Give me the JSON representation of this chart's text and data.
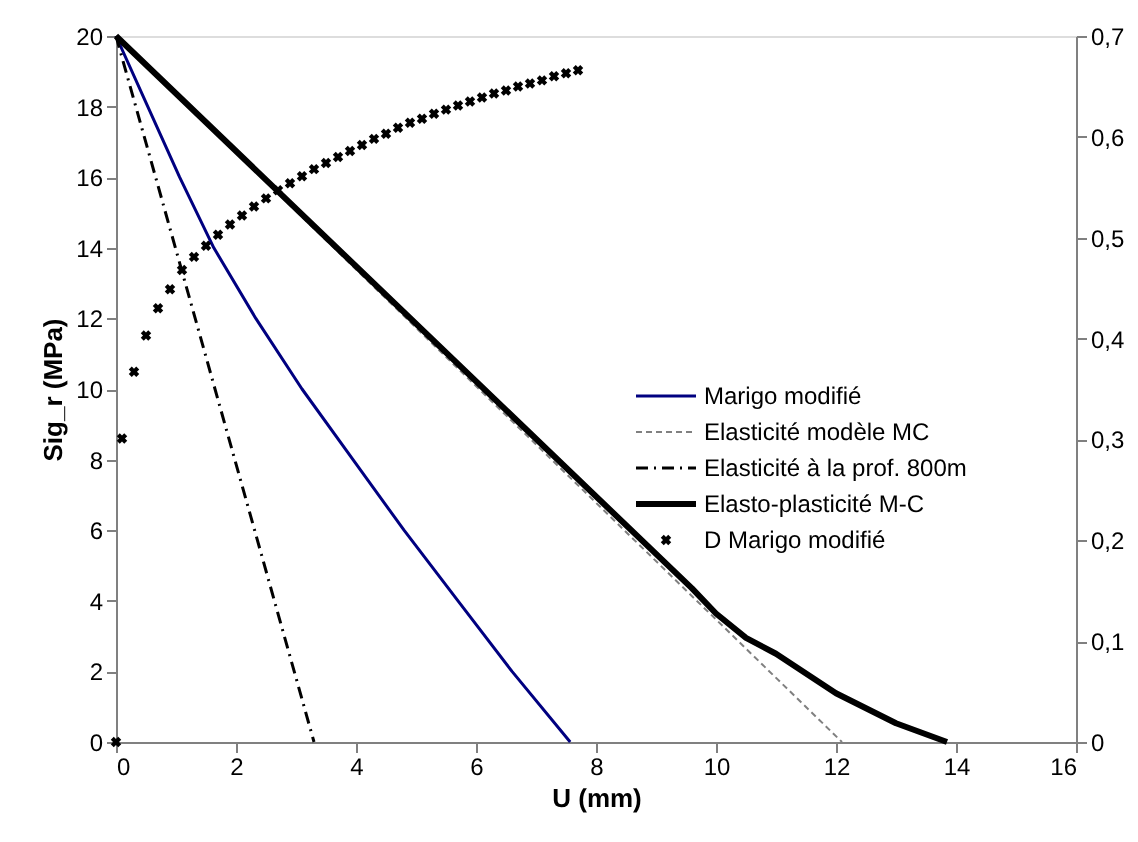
{
  "chart_data": {
    "type": "line",
    "xlabel": "U (mm)",
    "ylabel": "Sig_r (MPa)",
    "xlim": [
      0,
      16
    ],
    "xticks": [
      0,
      2,
      4,
      6,
      8,
      10,
      12,
      14,
      16
    ],
    "ylim": [
      0,
      20
    ],
    "yticks": [
      0,
      2,
      4,
      6,
      8,
      10,
      12,
      14,
      16,
      18,
      20
    ],
    "y2lim": [
      0,
      0.7
    ],
    "y2ticks": [
      {
        "value": 0,
        "label": "0"
      },
      {
        "value": 0.1,
        "label": "0,1"
      },
      {
        "value": 0.2,
        "label": "0,2"
      },
      {
        "value": 0.3,
        "label": "0,3"
      },
      {
        "value": 0.4,
        "label": "0,4"
      },
      {
        "value": 0.5,
        "label": "0,5"
      },
      {
        "value": 0.6,
        "label": "0,6"
      },
      {
        "value": 0.7,
        "label": "0,7"
      }
    ],
    "grid": false,
    "legend": "right",
    "series": [
      {
        "name": "Marigo modifié",
        "color": "#000080",
        "line_style": "solid",
        "x": [
          0,
          0.53,
          1.06,
          1.63,
          2.33,
          3.1,
          3.95,
          4.8,
          5.7,
          6.6,
          7.57
        ],
        "values": [
          20,
          18,
          16,
          14,
          12,
          10,
          8,
          6,
          4,
          2,
          0
        ]
      },
      {
        "name": "Elasticité modèle MC",
        "color": "#808080",
        "line_style": "dashed",
        "x": [
          0,
          12.1
        ],
        "values": [
          20,
          0
        ]
      },
      {
        "name": "Elasticité à la prof. 800m",
        "color": "#000000",
        "line_style": "dashdot",
        "x": [
          0,
          3.3
        ],
        "values": [
          20,
          0
        ]
      },
      {
        "name": "Elasto-plasticité M-C",
        "color": "#000000",
        "line_style": "solid",
        "x": [
          0,
          9.6,
          10,
          10.5,
          11,
          12,
          13,
          13.85
        ],
        "values": [
          20,
          4.35,
          3.64,
          2.95,
          2.5,
          1.38,
          0.53,
          0
        ]
      },
      {
        "name": "D Marigo modifié",
        "type": "scatter",
        "axis": "y2",
        "marker": "cross",
        "color": "#000000",
        "x": [
          0,
          0.1,
          0.3,
          0.5,
          0.7,
          0.9,
          1.1,
          1.3,
          1.5,
          1.7,
          1.9,
          2.1,
          2.3,
          2.5,
          2.7,
          2.9,
          3.1,
          3.3,
          3.5,
          3.7,
          3.9,
          4.1,
          4.3,
          4.5,
          4.7,
          4.9,
          5.1,
          5.3,
          5.5,
          5.7,
          5.9,
          6.1,
          6.3,
          6.5,
          6.7,
          6.9,
          7.1,
          7.3,
          7.5,
          7.7
        ],
        "values": [
          0,
          0.301,
          0.367,
          0.403,
          0.43,
          0.449,
          0.468,
          0.481,
          0.492,
          0.503,
          0.513,
          0.522,
          0.531,
          0.539,
          0.547,
          0.554,
          0.561,
          0.568,
          0.574,
          0.58,
          0.586,
          0.592,
          0.598,
          0.603,
          0.609,
          0.614,
          0.618,
          0.623,
          0.627,
          0.631,
          0.635,
          0.639,
          0.643,
          0.646,
          0.65,
          0.653,
          0.656,
          0.66,
          0.663,
          0.666
        ]
      }
    ]
  }
}
